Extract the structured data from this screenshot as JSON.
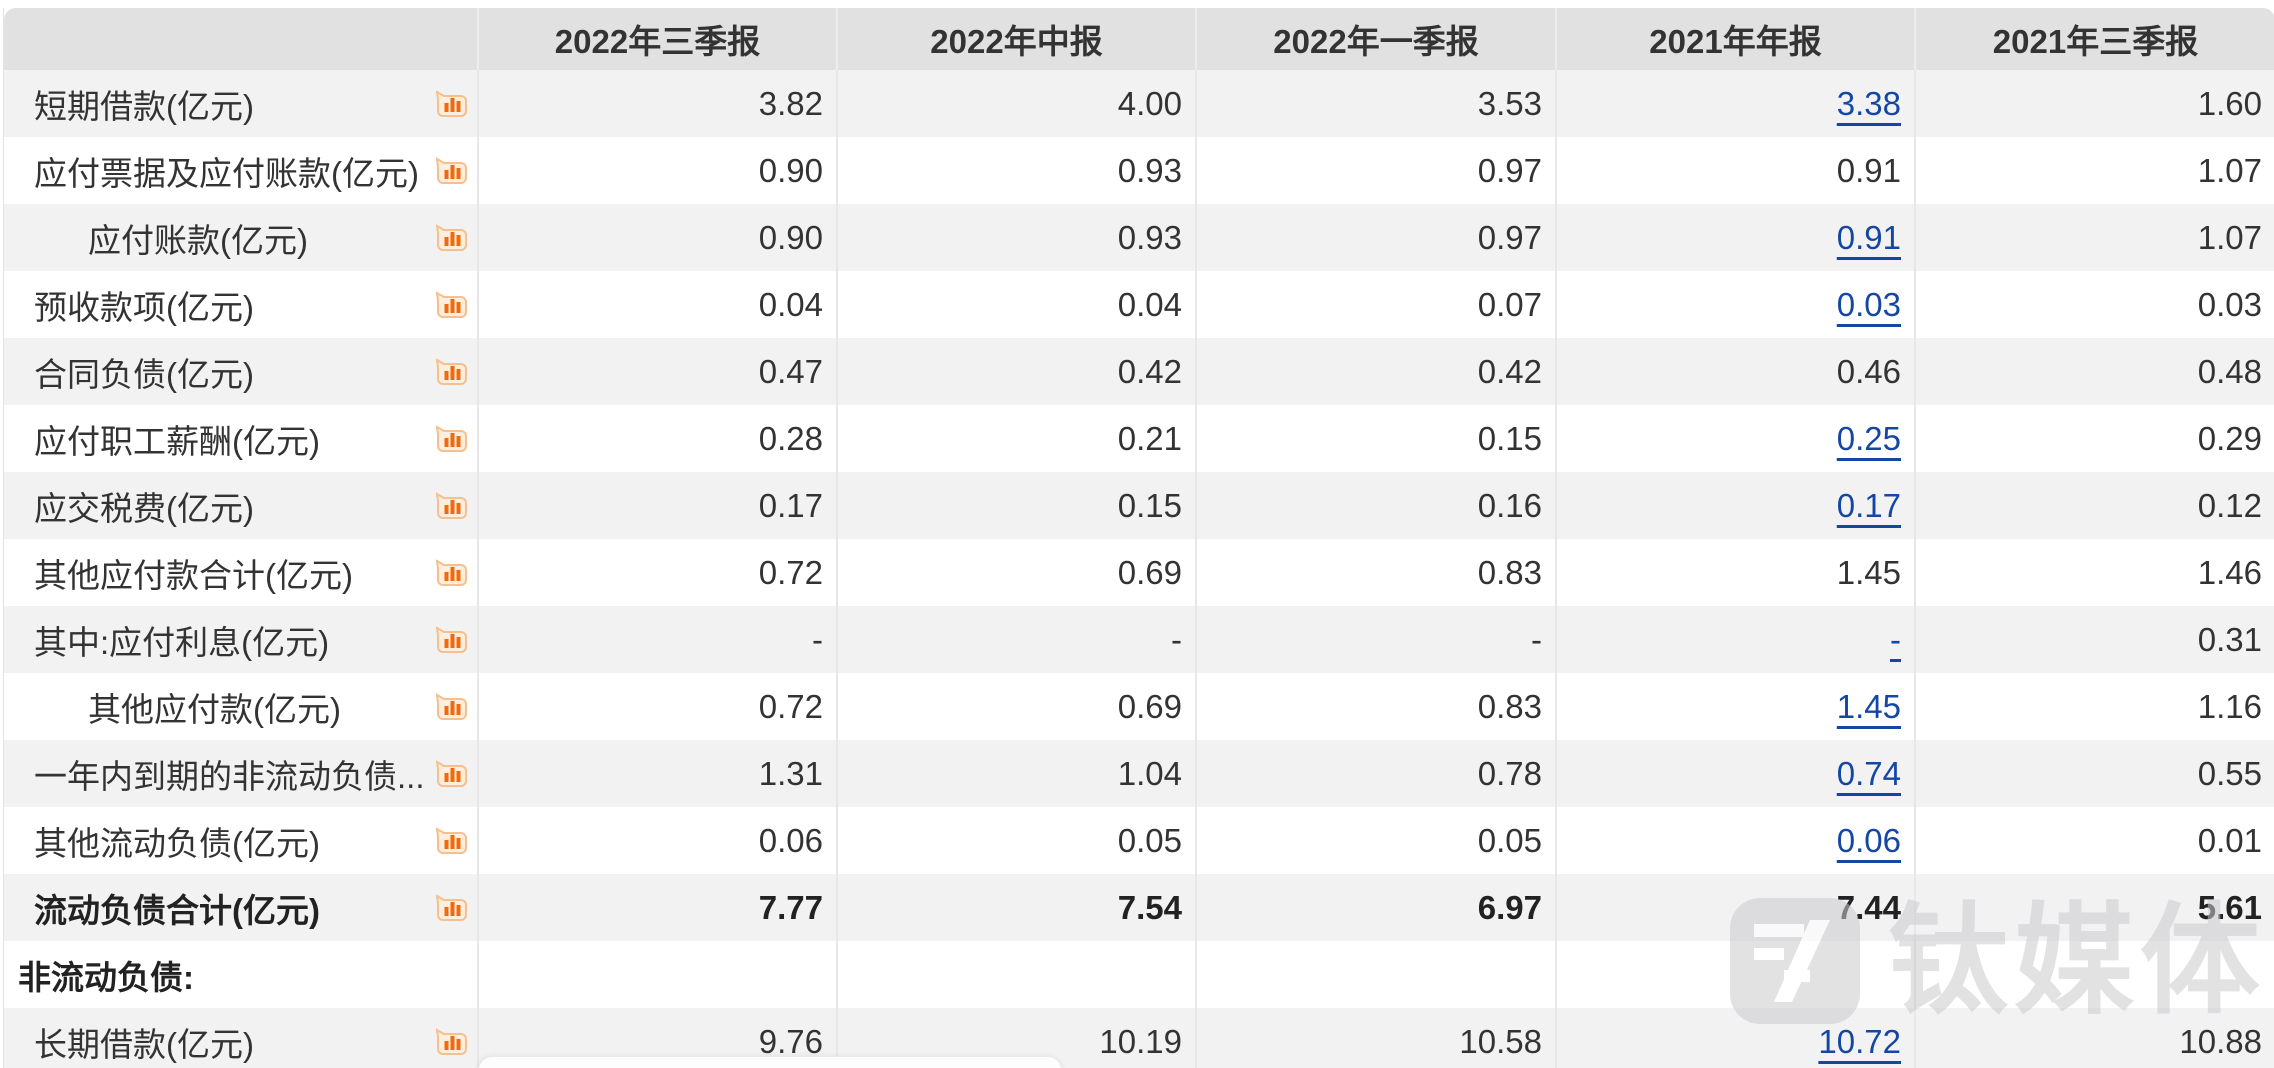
{
  "table": {
    "columns": [
      "2022年三季报",
      "2022年中报",
      "2022年一季报",
      "2021年年报",
      "2021年三季报"
    ],
    "rows": [
      {
        "label": "短期借款(亿元)",
        "icon": true,
        "indent": 0,
        "section": false,
        "bold": false,
        "values": [
          "3.82",
          "4.00",
          "3.53",
          "3.38",
          "1.60"
        ],
        "link_cols": [
          3
        ]
      },
      {
        "label": "应付票据及应付账款(亿元)",
        "icon": true,
        "indent": 0,
        "section": false,
        "bold": false,
        "values": [
          "0.90",
          "0.93",
          "0.97",
          "0.91",
          "1.07"
        ],
        "link_cols": []
      },
      {
        "label": "应付账款(亿元)",
        "icon": true,
        "indent": 1,
        "section": false,
        "bold": false,
        "values": [
          "0.90",
          "0.93",
          "0.97",
          "0.91",
          "1.07"
        ],
        "link_cols": [
          3
        ]
      },
      {
        "label": "预收款项(亿元)",
        "icon": true,
        "indent": 0,
        "section": false,
        "bold": false,
        "values": [
          "0.04",
          "0.04",
          "0.07",
          "0.03",
          "0.03"
        ],
        "link_cols": [
          3
        ]
      },
      {
        "label": "合同负债(亿元)",
        "icon": true,
        "indent": 0,
        "section": false,
        "bold": false,
        "values": [
          "0.47",
          "0.42",
          "0.42",
          "0.46",
          "0.48"
        ],
        "link_cols": []
      },
      {
        "label": "应付职工薪酬(亿元)",
        "icon": true,
        "indent": 0,
        "section": false,
        "bold": false,
        "values": [
          "0.28",
          "0.21",
          "0.15",
          "0.25",
          "0.29"
        ],
        "link_cols": [
          3
        ]
      },
      {
        "label": "应交税费(亿元)",
        "icon": true,
        "indent": 0,
        "section": false,
        "bold": false,
        "values": [
          "0.17",
          "0.15",
          "0.16",
          "0.17",
          "0.12"
        ],
        "link_cols": [
          3
        ]
      },
      {
        "label": "其他应付款合计(亿元)",
        "icon": true,
        "indent": 0,
        "section": false,
        "bold": false,
        "values": [
          "0.72",
          "0.69",
          "0.83",
          "1.45",
          "1.46"
        ],
        "link_cols": []
      },
      {
        "label": "其中:应付利息(亿元)",
        "icon": true,
        "indent": 0,
        "section": false,
        "bold": false,
        "values": [
          "-",
          "-",
          "-",
          "-",
          "0.31"
        ],
        "link_cols": [
          3
        ]
      },
      {
        "label": "其他应付款(亿元)",
        "icon": true,
        "indent": 1,
        "section": false,
        "bold": false,
        "values": [
          "0.72",
          "0.69",
          "0.83",
          "1.45",
          "1.16"
        ],
        "link_cols": [
          3
        ]
      },
      {
        "label": "一年内到期的非流动负债...",
        "icon": true,
        "indent": 0,
        "section": false,
        "bold": false,
        "values": [
          "1.31",
          "1.04",
          "0.78",
          "0.74",
          "0.55"
        ],
        "link_cols": [
          3
        ]
      },
      {
        "label": "其他流动负债(亿元)",
        "icon": true,
        "indent": 0,
        "section": false,
        "bold": false,
        "values": [
          "0.06",
          "0.05",
          "0.05",
          "0.06",
          "0.01"
        ],
        "link_cols": [
          3
        ]
      },
      {
        "label": "流动负债合计(亿元)",
        "icon": true,
        "indent": 0,
        "section": false,
        "bold": true,
        "values": [
          "7.77",
          "7.54",
          "6.97",
          "7.44",
          "5.61"
        ],
        "link_cols": []
      },
      {
        "label": "非流动负债:",
        "icon": false,
        "indent": 0,
        "section": true,
        "bold": true,
        "values": [
          "",
          "",
          "",
          "",
          ""
        ],
        "link_cols": []
      },
      {
        "label": "长期借款(亿元)",
        "icon": true,
        "indent": 0,
        "section": false,
        "bold": false,
        "values": [
          "9.76",
          "10.19",
          "10.58",
          "10.72",
          "10.88"
        ],
        "link_cols": [
          3
        ]
      }
    ]
  },
  "icons": {
    "row_icon": "bar-chart-icon"
  },
  "watermark": {
    "text": "钛媒体"
  },
  "colors": {
    "link_blue": "#1447a3",
    "icon_orange": "#f2680c",
    "header_gray": "#e1e1e2",
    "shade_gray": "#f2f2f3",
    "watermark_gray": "#cbcbcd"
  }
}
